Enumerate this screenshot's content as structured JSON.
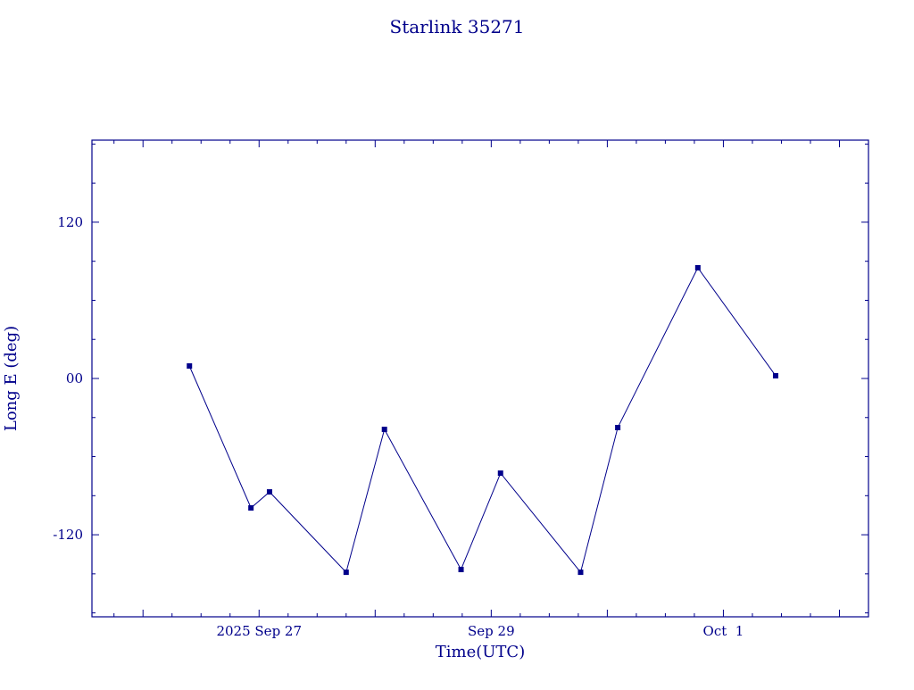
{
  "chart_data": {
    "type": "line",
    "title": "Starlink 35271",
    "xlabel": "Time(UTC)",
    "ylabel": "Long E (deg)",
    "color": "#00008b",
    "marker": "filled-square",
    "grid": false,
    "legend": null,
    "x_unit": "date (UTC), expressed as day number where 2025 Sep 27 = 27 and Oct 1 = 31",
    "xlim": [
      25.56,
      32.25
    ],
    "ylim": [
      -183,
      183
    ],
    "x_ticks": [
      {
        "day": 27,
        "label": "2025 Sep 27"
      },
      {
        "day": 29,
        "label": "Sep 29"
      },
      {
        "day": 31,
        "label": "Oct  1"
      }
    ],
    "x_minor_step_days": 0.25,
    "y_ticks": [
      {
        "value": 120,
        "label": "120"
      },
      {
        "value": 0,
        "label": "00"
      },
      {
        "value": -120,
        "label": "-120"
      }
    ],
    "y_minor_step": 30,
    "points": [
      {
        "day": 26.4,
        "long_e_deg": 9.6
      },
      {
        "day": 26.93,
        "long_e_deg": -99.4
      },
      {
        "day": 27.09,
        "long_e_deg": -87.1
      },
      {
        "day": 27.75,
        "long_e_deg": -148.8
      },
      {
        "day": 28.08,
        "long_e_deg": -39.1
      },
      {
        "day": 28.74,
        "long_e_deg": -146.7
      },
      {
        "day": 29.08,
        "long_e_deg": -72.7
      },
      {
        "day": 29.77,
        "long_e_deg": -148.8
      },
      {
        "day": 30.09,
        "long_e_deg": -37.7
      },
      {
        "day": 30.78,
        "long_e_deg": 85.0
      },
      {
        "day": 31.45,
        "long_e_deg": 2.1
      }
    ]
  }
}
